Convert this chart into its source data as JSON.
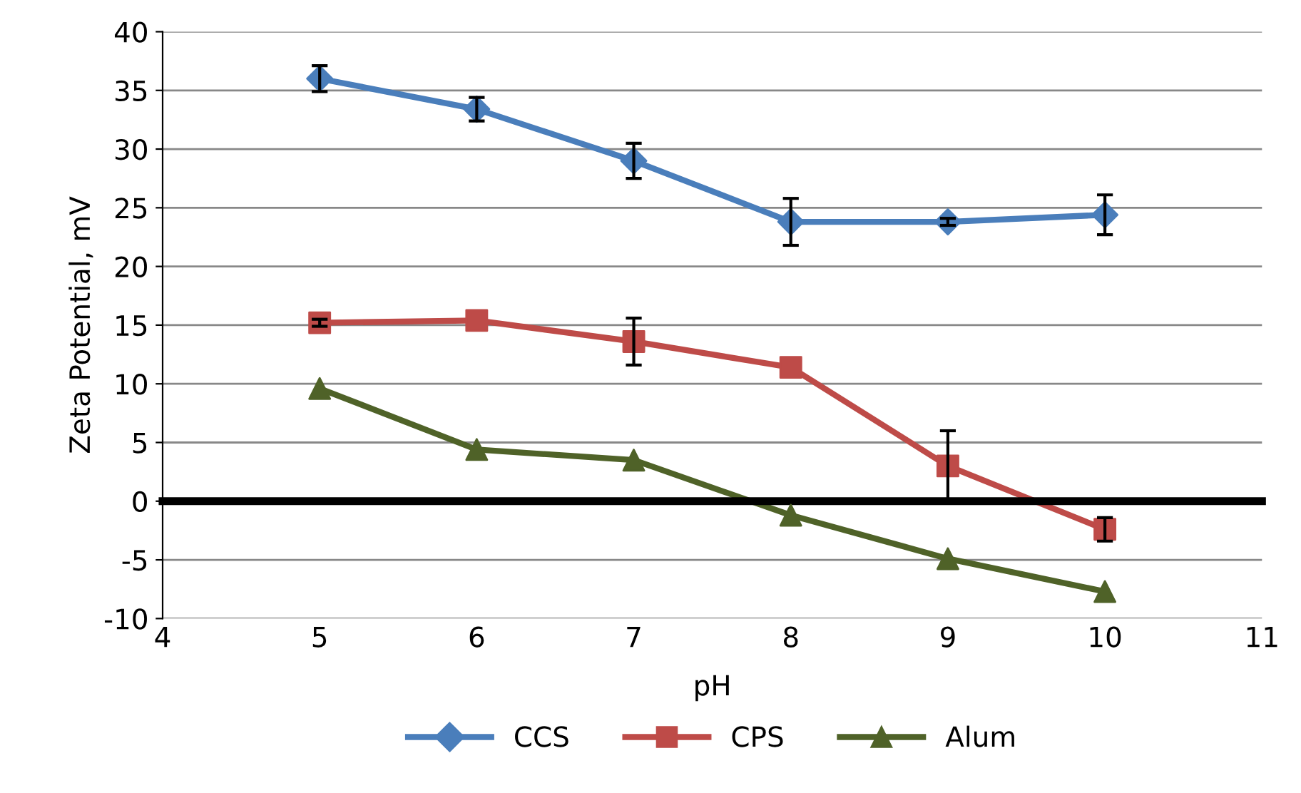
{
  "chart_data": {
    "type": "line",
    "xlabel": "pH",
    "ylabel": "Zeta Potential, mV",
    "x": [
      5,
      6,
      7,
      8,
      9,
      10
    ],
    "series": [
      {
        "name": "CCS",
        "color": "#4a7ebb",
        "marker": "diamond",
        "values": [
          36,
          33.4,
          29,
          23.8,
          23.8,
          24.4
        ],
        "errors": [
          1.1,
          1,
          1.5,
          2,
          0.3,
          1.7
        ]
      },
      {
        "name": "CPS",
        "color": "#be4b48",
        "marker": "square",
        "values": [
          15.2,
          15.4,
          13.6,
          11.4,
          3,
          -2.4
        ],
        "errors": [
          0.3,
          null,
          2,
          null,
          3,
          1
        ]
      },
      {
        "name": "Alum",
        "color": "#4f6228",
        "marker": "triangle",
        "values": [
          9.6,
          4.4,
          3.5,
          -1.2,
          -4.9,
          -7.7
        ]
      }
    ],
    "xlim": [
      4,
      11
    ],
    "xticks": [
      4,
      5,
      6,
      7,
      8,
      9,
      10,
      11
    ],
    "ylim": [
      -10,
      40
    ],
    "yticks": [
      -10,
      -5,
      0,
      5,
      10,
      15,
      20,
      25,
      30,
      35,
      40
    ],
    "grid": "y",
    "legend": "bottom",
    "line_style": "solid"
  }
}
